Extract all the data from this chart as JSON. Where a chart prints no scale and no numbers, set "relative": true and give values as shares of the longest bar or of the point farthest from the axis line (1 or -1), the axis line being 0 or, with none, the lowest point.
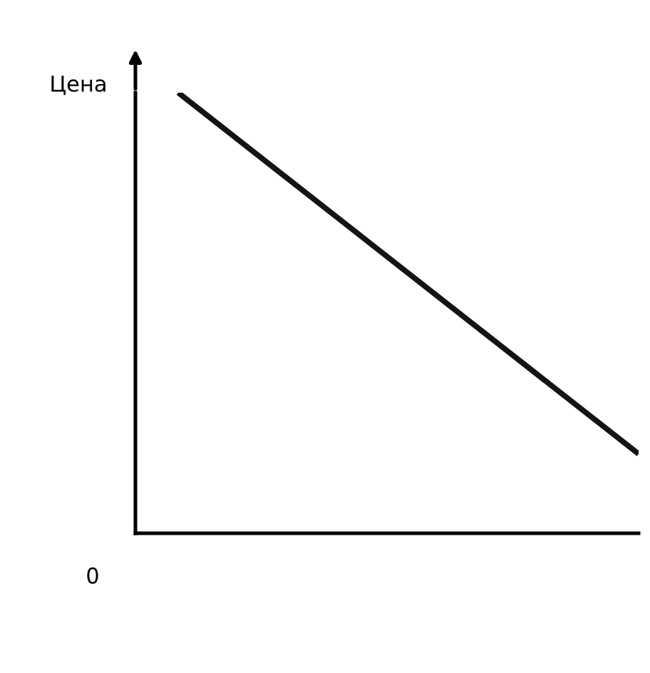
{
  "chart_data": {
    "type": "line",
    "relative": true,
    "ylabel": "Цена",
    "annotations": [
      "0"
    ],
    "categories": [
      null,
      null
    ],
    "series": [
      {
        "color": "#141414",
        "values": [
          1,
          0.18
        ]
      }
    ],
    "grid": false,
    "legend": false,
    "marker": "none",
    "line_style": "solid"
  }
}
